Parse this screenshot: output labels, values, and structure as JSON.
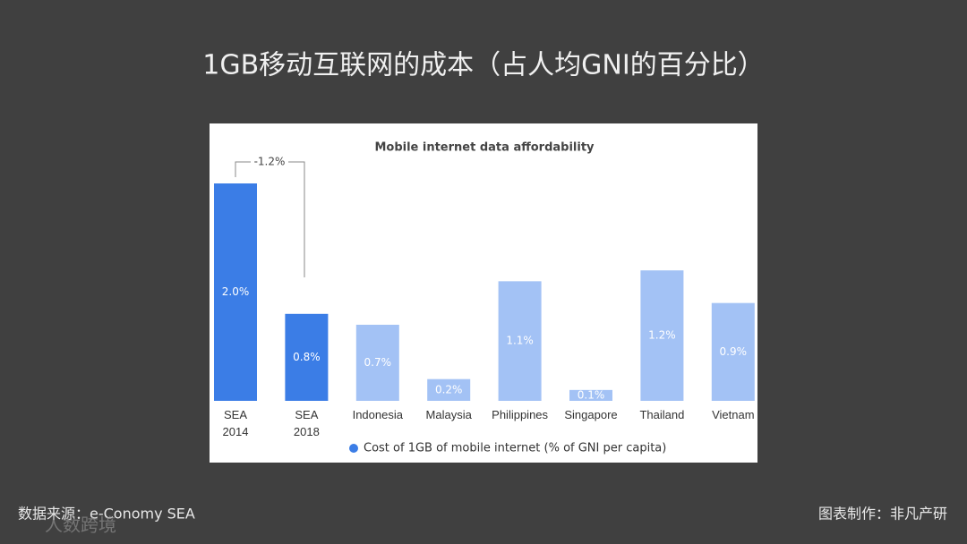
{
  "title": "1GB移动互联网的成本（占人均GNI的百分比）",
  "source": "数据来源：e-Conomy SEA",
  "credit": "图表制作：非凡产研",
  "watermark": "人数跨境",
  "chart_data": {
    "type": "bar",
    "title": "Mobile internet data affordability",
    "categories": [
      "SEA\n2014",
      "SEA\n2018",
      "Indonesia",
      "Malaysia",
      "Philippines",
      "Singapore",
      "Thailand",
      "Vietnam"
    ],
    "series": [
      {
        "name": "Cost of 1GB of mobile internet (% of GNI per capita)",
        "color": "#3b7de6",
        "values": [
          2.0,
          0.8,
          0.7,
          0.2,
          1.1,
          0.1,
          1.2,
          0.9
        ],
        "value_labels": [
          "2.0%",
          "0.8%",
          "0.7%",
          "0.2%",
          "1.1%",
          "0.1%",
          "1.2%",
          "0.9%"
        ]
      }
    ],
    "colors": [
      "#3b7de6",
      "#3b7de6",
      "#a3c2f5",
      "#a3c2f5",
      "#a3c2f5",
      "#a3c2f5",
      "#a3c2f5",
      "#a3c2f5"
    ],
    "annotation": "-1.2%",
    "legend": "bottom"
  }
}
